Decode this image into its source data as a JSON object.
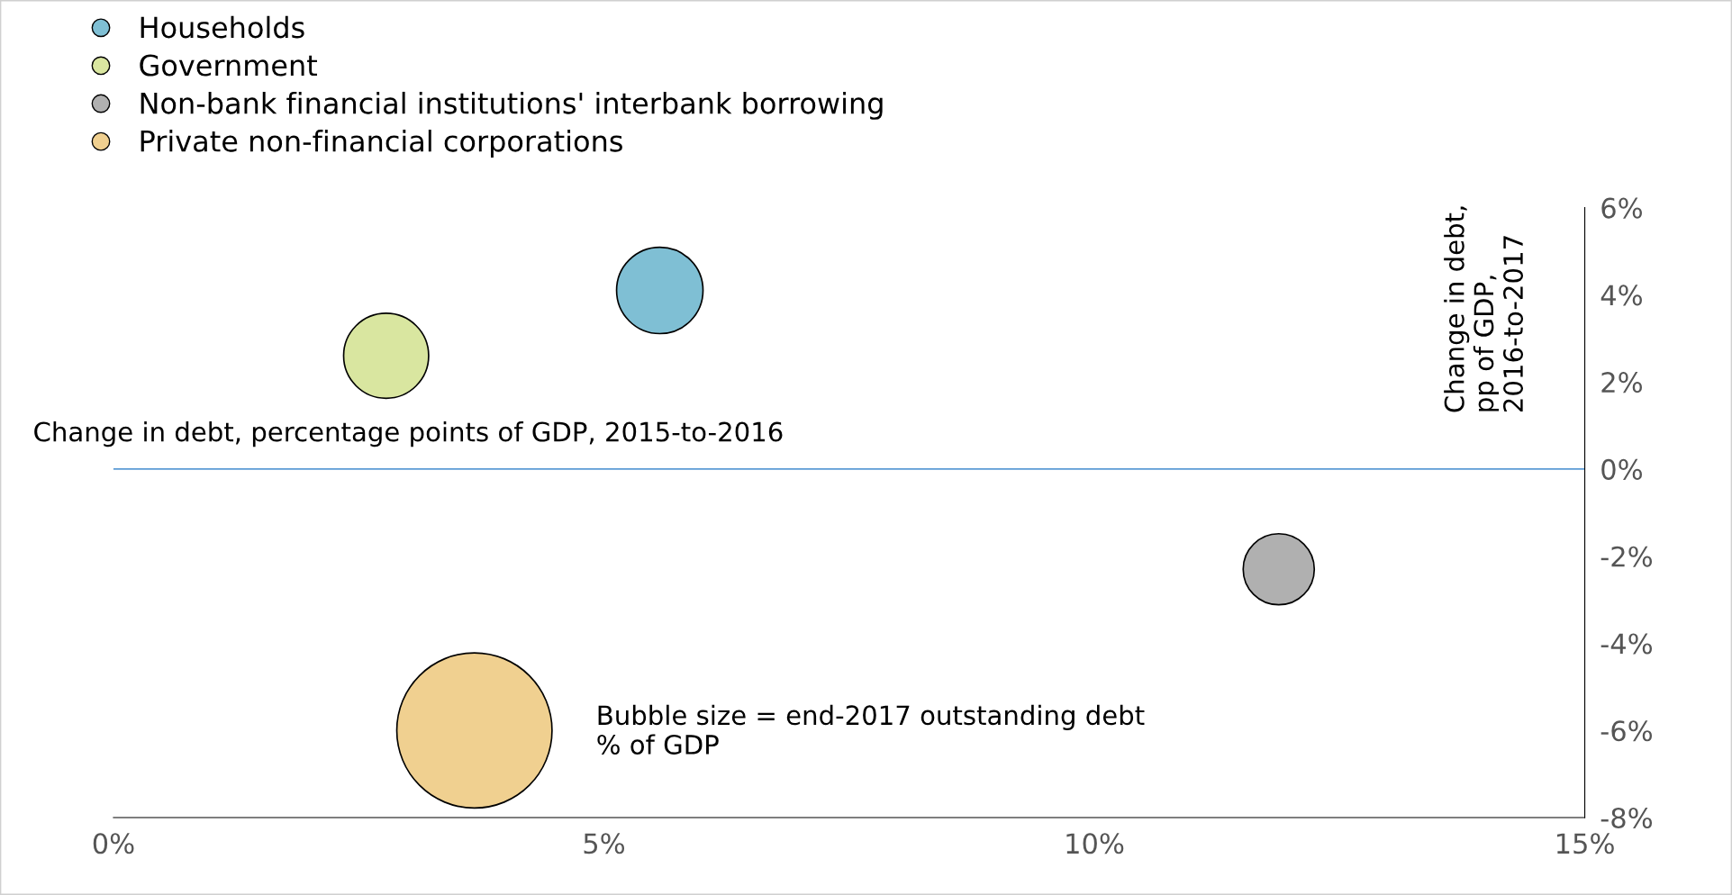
{
  "chart_data": {
    "type": "bubble",
    "xlabel": "Change in debt, percentage points of GDP, 2015-to-2016",
    "ylabel": "Change in debt,\npp of GDP,\n2016-to-2017",
    "annotations": [
      "Bubble size = end-2017 outstanding debt\n% of GDP"
    ],
    "series": [
      {
        "name": "Households",
        "color": "#7fbfd4",
        "x": [
          5.57
        ],
        "values": [
          4.1
        ],
        "sizes": [
          0.31
        ]
      },
      {
        "name": "Government",
        "color": "#d9e6a0",
        "x": [
          2.78
        ],
        "values": [
          2.6
        ],
        "sizes": [
          0.3
        ]
      },
      {
        "name": "Non-bank financial institutions' interbank borrowing",
        "color": "#b0b0b0",
        "x": [
          11.88
        ],
        "values": [
          -2.3
        ],
        "sizes": [
          0.21
        ]
      },
      {
        "name": "Private non-financial corporations",
        "color": "#f0d090",
        "x": [
          3.68
        ],
        "values": [
          -6.0
        ],
        "sizes": [
          1
        ]
      }
    ],
    "xlim": [
      0,
      15
    ],
    "xticks": [
      {
        "value": 0,
        "label": "0%"
      },
      {
        "value": 5,
        "label": "5%"
      },
      {
        "value": 10,
        "label": "10%"
      },
      {
        "value": 15,
        "label": "15%"
      }
    ],
    "ylim": [
      -8,
      6
    ],
    "yticks": [
      {
        "value": -8,
        "label": "-8%"
      },
      {
        "value": -6,
        "label": "-6%"
      },
      {
        "value": -4,
        "label": "-4%"
      },
      {
        "value": -2,
        "label": "-2%"
      },
      {
        "value": 0,
        "label": "0%"
      },
      {
        "value": 2,
        "label": "2%"
      },
      {
        "value": 4,
        "label": "4%"
      },
      {
        "value": 6,
        "label": "6%"
      }
    ],
    "ref_lines": [
      {
        "axis": "y",
        "value": 0,
        "color": "#5b9bd5"
      }
    ],
    "legend": "top left",
    "grid": false
  }
}
